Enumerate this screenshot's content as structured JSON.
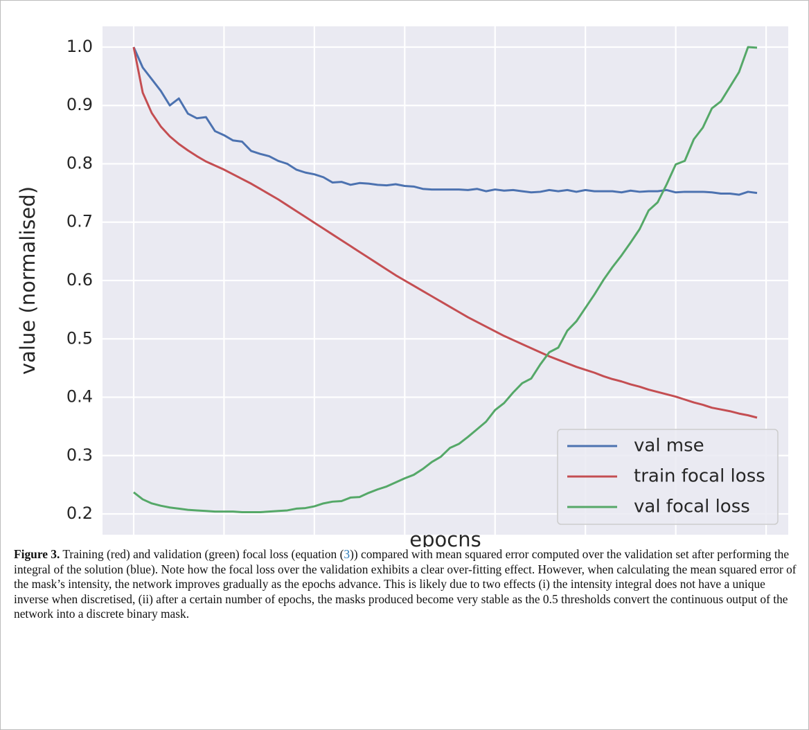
{
  "chart_data": {
    "type": "line",
    "x_label": "epochs",
    "y_label": "value (normalised)",
    "x": [
      0,
      1,
      2,
      3,
      4,
      5,
      6,
      7,
      8,
      9,
      10,
      11,
      12,
      13,
      14,
      15,
      16,
      17,
      18,
      19,
      20,
      21,
      22,
      23,
      24,
      25,
      26,
      27,
      28,
      29,
      30,
      31,
      32,
      33,
      34,
      35,
      36,
      37,
      38,
      39,
      40,
      41,
      42,
      43,
      44,
      45,
      46,
      47,
      48,
      49,
      50,
      51,
      52,
      53,
      54,
      55,
      56,
      57,
      58,
      59,
      60,
      61,
      62,
      63,
      64,
      65,
      66,
      67,
      68,
      69
    ],
    "series": [
      {
        "name": "val mse",
        "color": "#4c72b0",
        "values": [
          1.0,
          0.965,
          0.945,
          0.925,
          0.9,
          0.912,
          0.886,
          0.878,
          0.88,
          0.856,
          0.849,
          0.84,
          0.838,
          0.822,
          0.817,
          0.813,
          0.805,
          0.8,
          0.79,
          0.785,
          0.782,
          0.777,
          0.768,
          0.769,
          0.764,
          0.767,
          0.766,
          0.764,
          0.763,
          0.765,
          0.762,
          0.761,
          0.757,
          0.756,
          0.756,
          0.756,
          0.756,
          0.755,
          0.757,
          0.753,
          0.756,
          0.754,
          0.755,
          0.753,
          0.751,
          0.752,
          0.755,
          0.753,
          0.755,
          0.752,
          0.755,
          0.753,
          0.753,
          0.753,
          0.751,
          0.754,
          0.752,
          0.753,
          0.753,
          0.755,
          0.751,
          0.752,
          0.752,
          0.752,
          0.751,
          0.749,
          0.749,
          0.747,
          0.752,
          0.75
        ]
      },
      {
        "name": "train focal loss",
        "color": "#c44e52",
        "values": [
          1.0,
          0.922,
          0.887,
          0.864,
          0.847,
          0.834,
          0.823,
          0.813,
          0.804,
          0.797,
          0.79,
          0.782,
          0.774,
          0.766,
          0.757,
          0.748,
          0.739,
          0.729,
          0.719,
          0.709,
          0.699,
          0.689,
          0.679,
          0.669,
          0.659,
          0.649,
          0.639,
          0.629,
          0.619,
          0.609,
          0.6,
          0.591,
          0.582,
          0.573,
          0.564,
          0.555,
          0.546,
          0.537,
          0.529,
          0.521,
          0.513,
          0.505,
          0.498,
          0.491,
          0.484,
          0.477,
          0.47,
          0.464,
          0.458,
          0.452,
          0.447,
          0.442,
          0.436,
          0.431,
          0.427,
          0.422,
          0.418,
          0.413,
          0.409,
          0.405,
          0.401,
          0.396,
          0.391,
          0.387,
          0.382,
          0.379,
          0.376,
          0.372,
          0.369,
          0.365
        ]
      },
      {
        "name": "val focal loss",
        "color": "#55a868",
        "values": [
          0.237,
          0.225,
          0.218,
          0.214,
          0.211,
          0.209,
          0.207,
          0.206,
          0.205,
          0.204,
          0.204,
          0.204,
          0.203,
          0.203,
          0.203,
          0.204,
          0.205,
          0.206,
          0.209,
          0.21,
          0.213,
          0.218,
          0.221,
          0.222,
          0.228,
          0.229,
          0.236,
          0.242,
          0.247,
          0.254,
          0.261,
          0.267,
          0.277,
          0.289,
          0.298,
          0.313,
          0.32,
          0.332,
          0.345,
          0.358,
          0.378,
          0.39,
          0.408,
          0.424,
          0.432,
          0.456,
          0.477,
          0.485,
          0.514,
          0.53,
          0.553,
          0.576,
          0.601,
          0.623,
          0.643,
          0.665,
          0.688,
          0.72,
          0.734,
          0.765,
          0.799,
          0.805,
          0.842,
          0.862,
          0.895,
          0.907,
          0.932,
          0.957,
          1.0,
          0.999
        ]
      }
    ],
    "xlim": [
      -3.45,
      72.45
    ],
    "xticks": [
      0,
      10,
      20,
      30,
      40,
      50,
      60,
      70
    ],
    "ylim": [
      0.1644,
      1.0356
    ],
    "yticks": [
      0.2,
      0.3,
      0.4,
      0.5,
      0.6,
      0.7,
      0.8,
      0.9,
      {
        "value": 1,
        "label": "1.0"
      }
    ],
    "grid": true,
    "legend": "lower right"
  },
  "caption": {
    "label": "Figure 3.",
    "text_1": " Training (red) and validation (green) focal loss (equation (",
    "ref": "3",
    "text_2": ")) compared with mean squared error computed over the validation set after performing the integral of the solution (blue). Note how the focal loss over the validation exhibits a clear over-fitting effect. However, when calculating the mean squared error of the mask’s intensity, the network improves gradually as the epochs advance. This is likely due to two effects (i) the intensity integral does not have a unique inverse when discretised, (ii) after a certain number of epochs, the masks produced become very stable as the 0.5 thresholds convert the continuous output of the network into a discrete binary mask."
  }
}
